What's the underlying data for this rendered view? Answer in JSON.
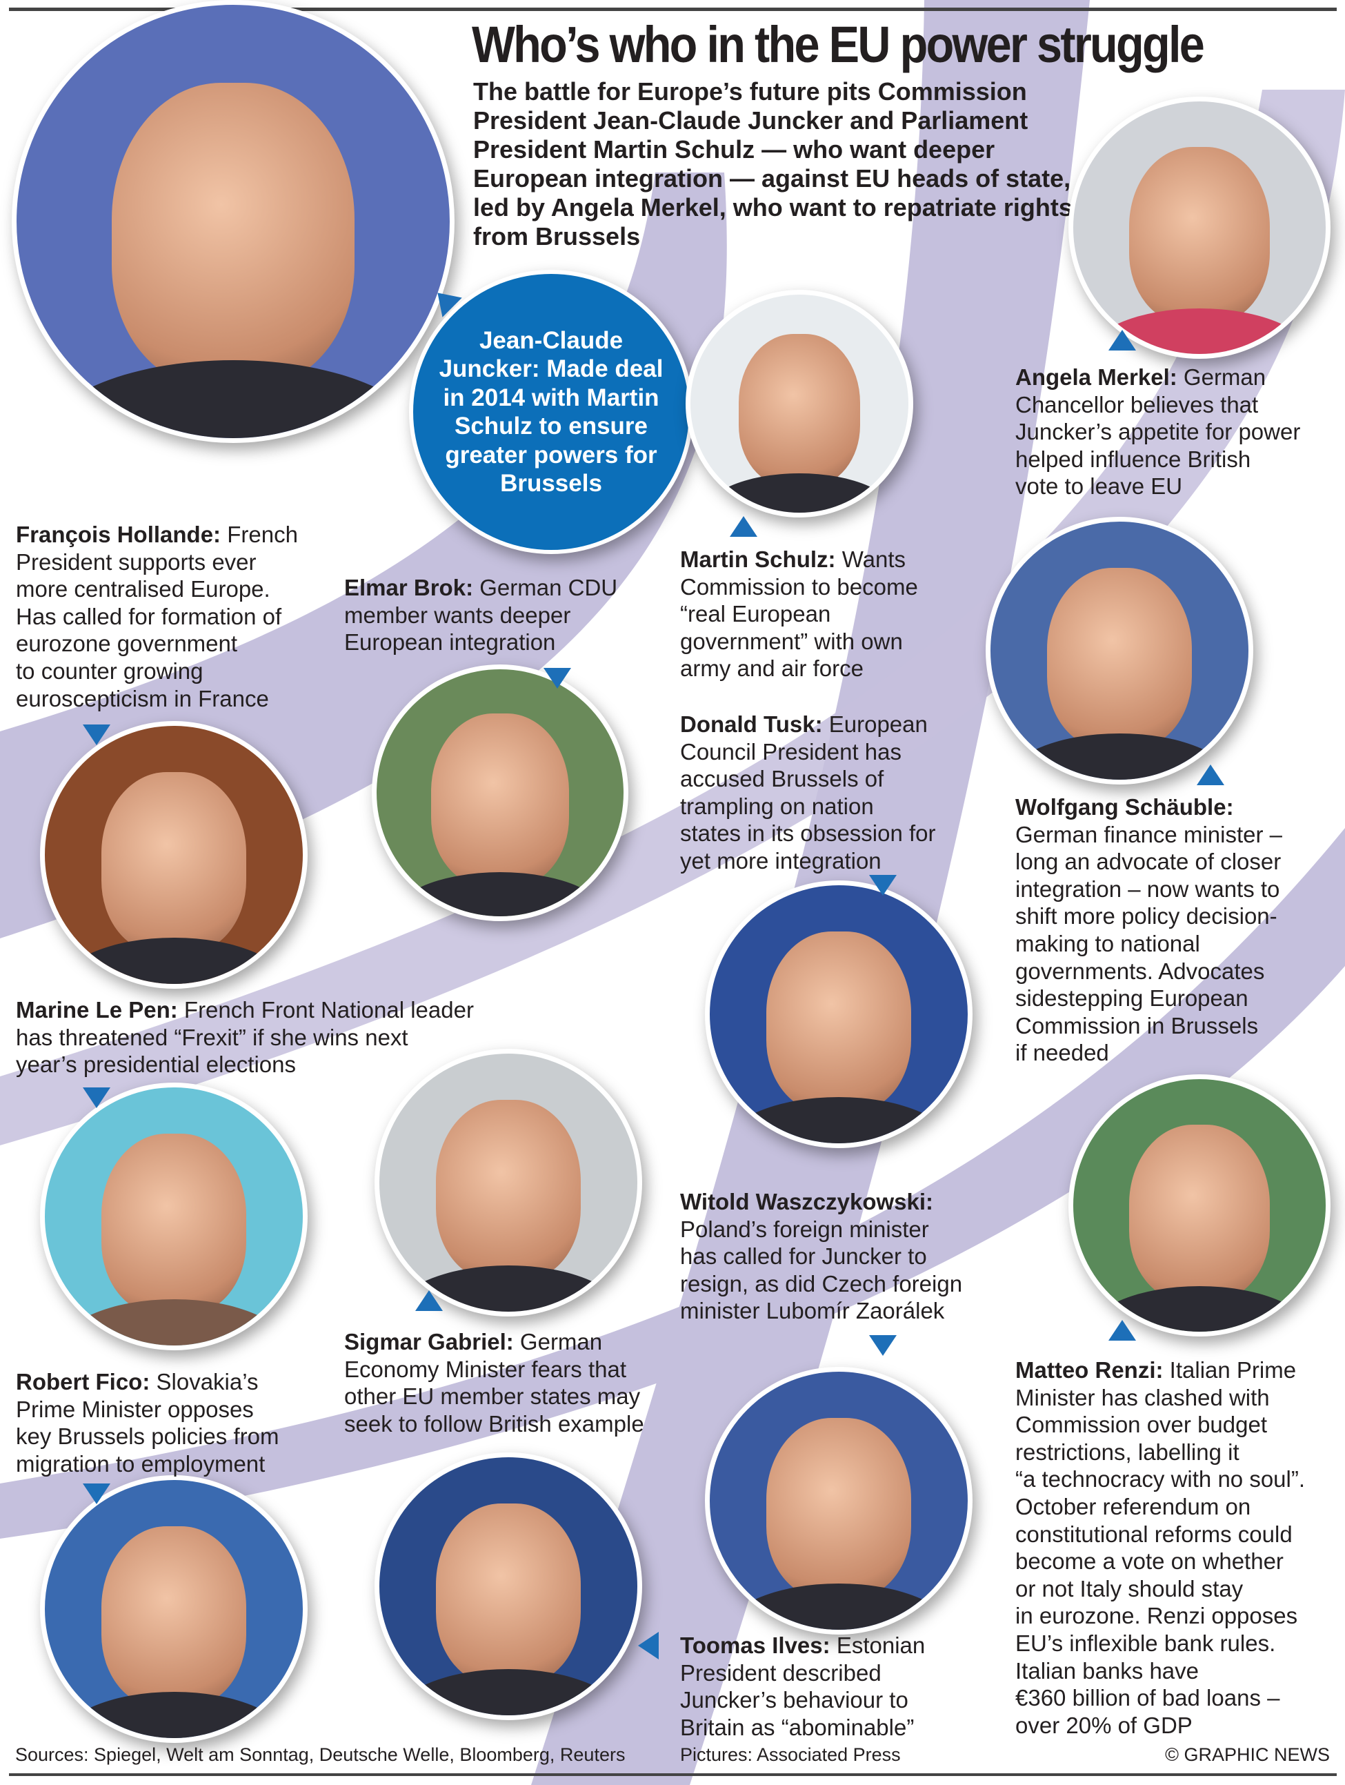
{
  "title": "Who’s who in the EU power struggle",
  "subtitle": "The battle for Europe’s future pits Commission President Jean-Claude Juncker and Parliament President Martin Schulz — who want deeper European integration — against EU heads of state, led by Angela Merkel, who want to repatriate rights from Brussels",
  "bubble": "Jean-Claude Juncker: Made deal in 2014 with Martin Schulz to ensure greater powers for Brussels",
  "colors": {
    "accent_blue": "#0c6fb9",
    "swoosh": "#c5c0dd"
  },
  "people": [
    {
      "name": "Angela Merkel:",
      "text": [
        "German",
        "Chancellor believes that",
        "Juncker’s appetite for power",
        "helped influence British",
        "vote to leave EU"
      ]
    },
    {
      "name": "François Hollande:",
      "text": [
        "French",
        "President supports ever",
        "more centralised Europe.",
        "Has called for formation of",
        "eurozone government",
        "to counter growing",
        "euroscepticism in France"
      ]
    },
    {
      "name": "Elmar Brok:",
      "text": [
        "German CDU",
        "member wants deeper",
        "European integration"
      ]
    },
    {
      "name": "Martin Schulz:",
      "text": [
        "Wants",
        "Commission to become",
        "“real European",
        "government” with own",
        "army and air force"
      ]
    },
    {
      "name": "Donald Tusk:",
      "text": [
        "European",
        "Council President has",
        "accused Brussels of",
        "trampling on nation",
        "states in its obsession for",
        "yet more integration"
      ]
    },
    {
      "name": "Wolfgang Schäuble:",
      "text": [
        "",
        "German finance minister –",
        "long an advocate of closer",
        "integration – now wants to",
        "shift more policy decision-",
        "making to national",
        "governments. Advocates",
        "sidestepping European",
        "Commission in Brussels",
        "if needed"
      ]
    },
    {
      "name": "Marine Le Pen:",
      "text": [
        "French Front National leader",
        "has threatened “Frexit” if she wins next",
        "year’s presidential elections"
      ]
    },
    {
      "name": "Witold Waszczykowski:",
      "text": [
        "",
        "Poland’s foreign minister",
        "has called for Juncker to",
        "resign, as did Czech foreign",
        "minister Lubomír Zaorálek"
      ]
    },
    {
      "name": "Sigmar Gabriel:",
      "text": [
        "German",
        "Economy Minister fears that",
        "other EU member states may",
        "seek to follow British example"
      ]
    },
    {
      "name": "Matteo Renzi:",
      "text": [
        "Italian Prime",
        "Minister has clashed with",
        "Commission over budget",
        "restrictions, labelling it",
        "“a technocracy with no soul”.",
        "October referendum on",
        "constitutional reforms could",
        "become a vote on whether",
        "or not Italy should stay",
        "in eurozone. Renzi opposes",
        "EU’s inflexible bank rules.",
        "Italian banks have",
        "€360 billion of bad loans –",
        "over 20% of GDP"
      ]
    },
    {
      "name": "Robert Fico:",
      "text": [
        "Slovakia’s",
        "Prime Minister opposes",
        "key Brussels policies from",
        "migration to employment"
      ]
    },
    {
      "name": "Toomas Ilves:",
      "text": [
        "Estonian",
        "President described",
        "Juncker’s behaviour to",
        "Britain as “abominable”"
      ]
    }
  ],
  "footer": {
    "sources": "Sources: Spiegel, Welt am Sonntag, Deutsche Welle, Bloomberg, Reuters",
    "pictures": "Pictures: Associated Press",
    "credit": "© GRAPHIC NEWS"
  }
}
